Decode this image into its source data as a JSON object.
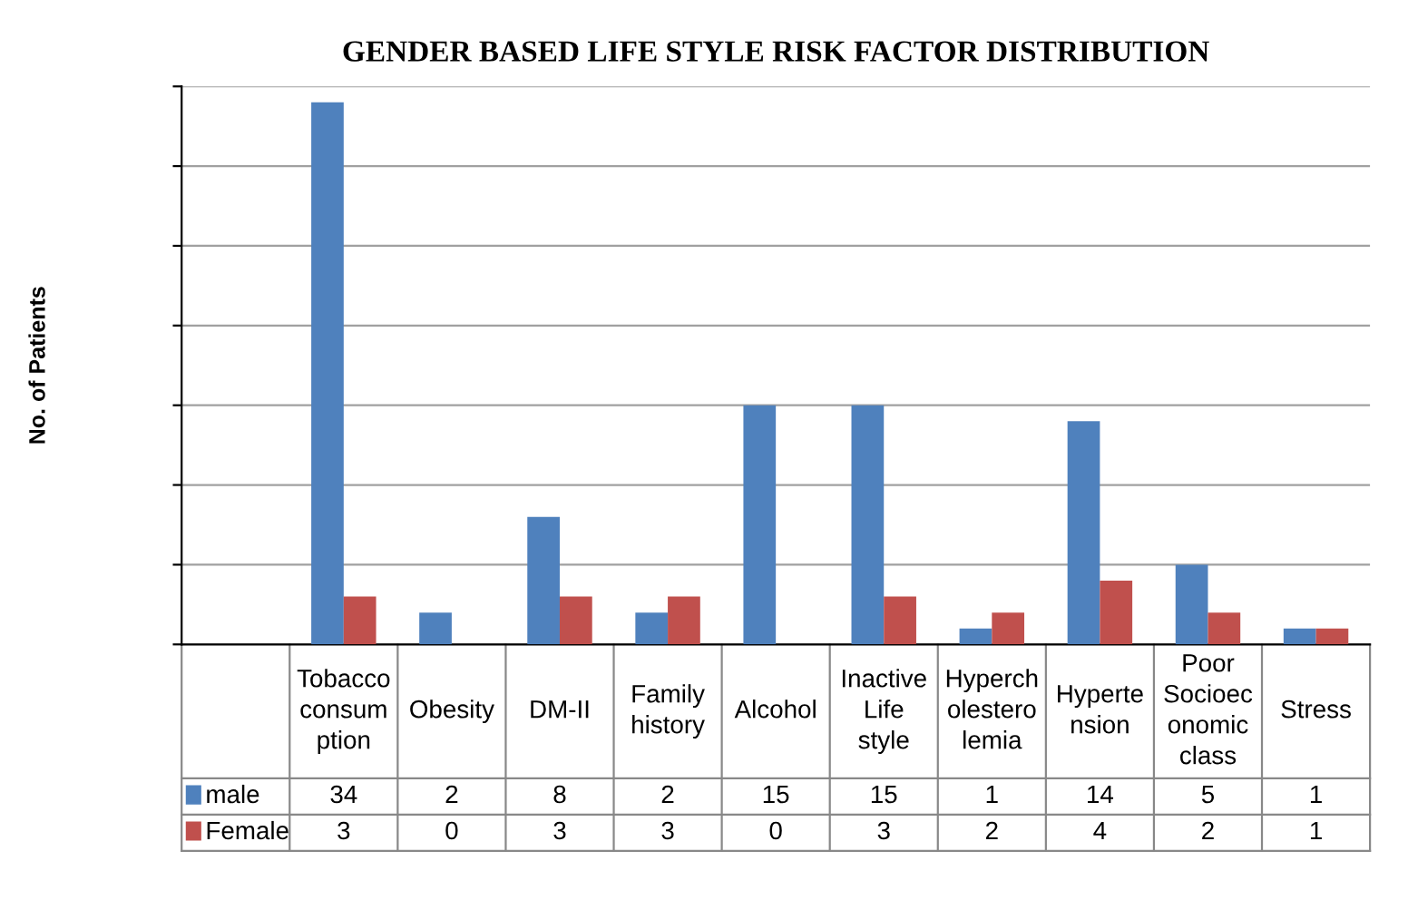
{
  "chart_data": {
    "type": "bar",
    "title": "GENDER BASED LIFE STYLE RISK FACTOR DISTRIBUTION",
    "annotations": [
      "No. of Patients"
    ],
    "categories": [
      "Tobacco\nconsum\nption",
      "Obesity",
      "DM-II",
      "Family\nhistory",
      "Alcohol",
      "Inactive\nLife\nstyle",
      "Hyperch\nolestero\nlemia",
      "Hyperte\nnsion",
      "Poor\nSocioec\nonomic\nclass",
      "Stress"
    ],
    "series": [
      {
        "name": "male",
        "color": "#4f81bd",
        "values": [
          34,
          2,
          8,
          2,
          15,
          15,
          1,
          14,
          5,
          1
        ]
      },
      {
        "name": "Female",
        "color": "#c0504d",
        "values": [
          3,
          0,
          3,
          3,
          0,
          3,
          2,
          4,
          2,
          1
        ]
      }
    ],
    "ylim": [
      0,
      35
    ],
    "yticks": [
      {
        "value": 0,
        "label": null
      },
      {
        "value": 5,
        "label": null
      },
      {
        "value": 10,
        "label": null
      },
      {
        "value": 15,
        "label": null
      },
      {
        "value": 20,
        "label": null
      },
      {
        "value": 25,
        "label": null
      },
      {
        "value": 30,
        "label": null
      },
      {
        "value": 35,
        "label": null
      }
    ],
    "grid": "y",
    "legend": "bottom",
    "data_labels": true
  }
}
